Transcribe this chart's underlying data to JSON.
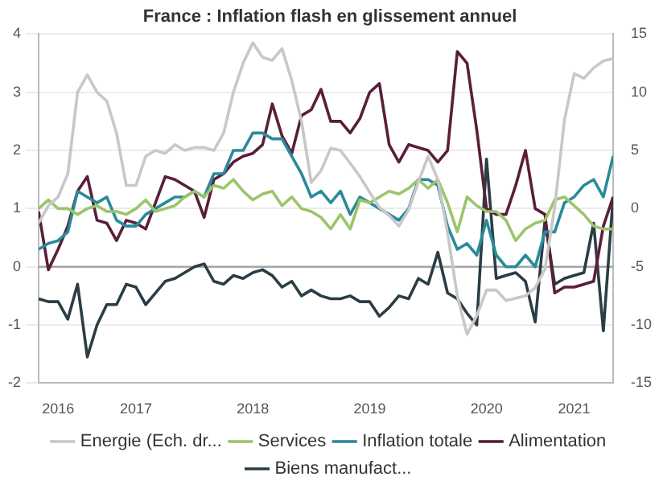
{
  "chart_data": {
    "type": "line",
    "title": "France : Inflation flash en glissement annuel",
    "x": [
      "2016-09",
      "2016-10",
      "2016-11",
      "2016-12",
      "2017-01",
      "2017-02",
      "2017-03",
      "2017-04",
      "2017-05",
      "2017-06",
      "2017-07",
      "2017-08",
      "2017-09",
      "2017-10",
      "2017-11",
      "2017-12",
      "2018-01",
      "2018-02",
      "2018-03",
      "2018-04",
      "2018-05",
      "2018-06",
      "2018-07",
      "2018-08",
      "2018-09",
      "2018-10",
      "2018-11",
      "2018-12",
      "2019-01",
      "2019-02",
      "2019-03",
      "2019-04",
      "2019-05",
      "2019-06",
      "2019-07",
      "2019-08",
      "2019-09",
      "2019-10",
      "2019-11",
      "2019-12",
      "2020-01",
      "2020-02",
      "2020-03",
      "2020-04",
      "2020-05",
      "2020-06",
      "2020-07",
      "2020-08",
      "2020-09",
      "2020-10",
      "2020-11",
      "2020-12",
      "2021-01",
      "2021-02",
      "2021-03",
      "2021-04",
      "2021-05",
      "2021-06",
      "2021-07",
      "2021-08"
    ],
    "xlim": [
      "2016-09",
      "2021-08"
    ],
    "xticks": [
      {
        "value": "2016-11",
        "label": "2016"
      },
      {
        "value": "2017-07",
        "label": "2017"
      },
      {
        "value": "2018-07",
        "label": "2018"
      },
      {
        "value": "2019-07",
        "label": "2019"
      },
      {
        "value": "2020-07",
        "label": "2020"
      },
      {
        "value": "2021-04",
        "label": "2021"
      }
    ],
    "ylim": [
      -2,
      4
    ],
    "yticks": [
      -2,
      -1,
      0,
      1,
      2,
      3,
      4
    ],
    "y2lim": [
      -15,
      15
    ],
    "y2ticks": [
      -15,
      -10,
      -5,
      0,
      5,
      10,
      15
    ],
    "grid": "y",
    "legend": "bottom",
    "ref_lines": [
      {
        "axis": "y",
        "value": 0,
        "color": "#a6a6a6"
      }
    ],
    "series": [
      {
        "name": "Energie (Ech. dr...",
        "color": "#c8c8c8",
        "axis": "y2",
        "values": [
          -1.25,
          0.25,
          1,
          3,
          10,
          11.5,
          10,
          9.25,
          6.5,
          2,
          2,
          4.5,
          5,
          4.75,
          5.5,
          5,
          5.25,
          5.25,
          5,
          6.5,
          10,
          12.5,
          14.25,
          13,
          12.75,
          13.75,
          11,
          7.5,
          2.25,
          3.25,
          5.2,
          5,
          3.9,
          2.75,
          1.4,
          0.1,
          -0.6,
          -1.5,
          -0.1,
          2.3,
          4.5,
          2.5,
          -2.1,
          -7.5,
          -10.8,
          -9.2,
          -7,
          -7,
          -7.9,
          -7.7,
          -7.5,
          -6.8,
          -5.2,
          0.1,
          7.6,
          11.6,
          11.2,
          12.1,
          12.7,
          12.9
        ]
      },
      {
        "name": "Services",
        "color": "#9cc46a",
        "values": [
          1,
          1.15,
          1,
          1,
          0.9,
          1,
          1.05,
          0.95,
          0.95,
          0.9,
          1,
          1.15,
          0.95,
          1,
          1.05,
          1.2,
          1.3,
          1.2,
          1.4,
          1.35,
          1.5,
          1.3,
          1.15,
          1.25,
          1.3,
          1.05,
          1.2,
          1,
          0.95,
          0.85,
          0.65,
          0.9,
          0.65,
          1.15,
          1.1,
          1.2,
          1.3,
          1.25,
          1.35,
          1.5,
          1.35,
          1.5,
          1.1,
          0.6,
          1.2,
          1.05,
          0.95,
          0.95,
          0.8,
          0.45,
          0.65,
          0.75,
          0.8,
          1.15,
          1.2,
          1.05,
          0.9,
          0.7,
          0.65,
          0.65
        ]
      },
      {
        "name": "Inflation totale",
        "color": "#2a8a9a",
        "values": [
          0.3,
          0.4,
          0.45,
          0.6,
          1.3,
          1.2,
          1.1,
          1.2,
          0.8,
          0.7,
          0.7,
          0.9,
          1,
          1.1,
          1.2,
          1.2,
          1.3,
          1.2,
          1.6,
          1.6,
          2,
          2,
          2.3,
          2.3,
          2.2,
          2.2,
          1.9,
          1.6,
          1.2,
          1.3,
          1.1,
          1.3,
          0.9,
          1.2,
          1.1,
          1,
          0.9,
          0.8,
          1,
          1.5,
          1.5,
          1.4,
          0.7,
          0.3,
          0.4,
          0.2,
          0.8,
          0.2,
          0,
          0,
          0.2,
          0,
          0.6,
          0.6,
          1.1,
          1.2,
          1.4,
          1.5,
          1.2,
          1.9
        ]
      },
      {
        "name": "Alimentation",
        "color": "#5a1e3a",
        "values": [
          0.95,
          -0.05,
          0.3,
          0.7,
          1.3,
          1.55,
          0.8,
          0.75,
          0.45,
          0.8,
          0.75,
          0.65,
          1.1,
          1.55,
          1.5,
          1.4,
          1.3,
          0.85,
          1.5,
          1.6,
          1.8,
          1.9,
          1.95,
          2.1,
          2.8,
          2.25,
          1.95,
          2.6,
          2.7,
          3.05,
          2.5,
          2.5,
          2.3,
          2.55,
          3,
          3.15,
          2.1,
          1.8,
          2.1,
          2.05,
          2,
          1.8,
          2,
          3.7,
          3.5,
          2.35,
          1,
          0.9,
          0.9,
          1.4,
          2,
          1,
          0.9,
          -0.45,
          -0.35,
          -0.35,
          -0.3,
          -0.25,
          0.7,
          1.2
        ]
      },
      {
        "name": "Biens manufact...",
        "color": "#2b3d45",
        "values": [
          -0.55,
          -0.6,
          -0.6,
          -0.9,
          -0.3,
          -1.55,
          -1,
          -0.65,
          -0.65,
          -0.3,
          -0.35,
          -0.65,
          -0.45,
          -0.25,
          -0.2,
          -0.1,
          0,
          0.05,
          -0.25,
          -0.3,
          -0.15,
          -0.2,
          -0.1,
          -0.05,
          -0.15,
          -0.35,
          -0.25,
          -0.5,
          -0.4,
          -0.5,
          -0.55,
          -0.55,
          -0.5,
          -0.6,
          -0.6,
          -0.85,
          -0.7,
          -0.5,
          -0.55,
          -0.2,
          -0.3,
          0.25,
          -0.45,
          -0.55,
          -0.8,
          -1,
          1.85,
          -0.2,
          -0.15,
          -0.1,
          -0.25,
          -0.95,
          0.8,
          -0.3,
          -0.2,
          -0.15,
          -0.1,
          0.75,
          -1.1,
          1.2
        ]
      }
    ]
  }
}
